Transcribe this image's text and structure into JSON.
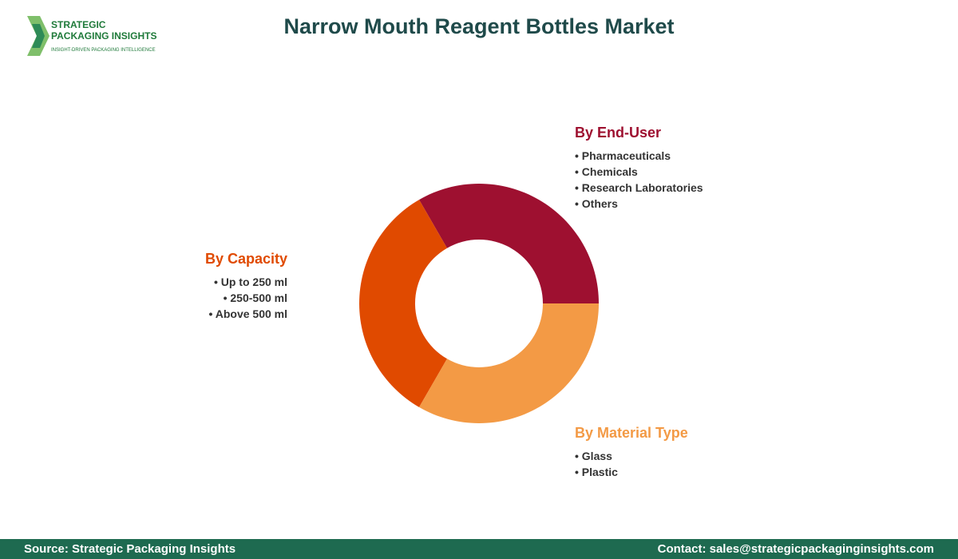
{
  "header": {
    "title": "Narrow Mouth Reagent Bottles Market",
    "logo": {
      "line1": "STRATEGIC",
      "line2": "PACKAGING INSIGHTS",
      "tagline": "INSIGHT-DRIVEN PACKAGING INTELLIGENCE"
    }
  },
  "segments": [
    {
      "title": "By End-User",
      "items": [
        "Pharmaceuticals",
        "Chemicals",
        "Research Laboratories",
        "Others"
      ]
    },
    {
      "title": "By Capacity",
      "items": [
        "Up to 250 ml",
        "250-500 ml",
        "Above 500 ml"
      ]
    },
    {
      "title": "By Material Type",
      "items": [
        "Glass",
        "Plastic"
      ]
    }
  ],
  "footer": {
    "source": "Source: Strategic Packaging Insights",
    "contact": "Contact: sales@strategicpackaginginsights.com"
  }
}
